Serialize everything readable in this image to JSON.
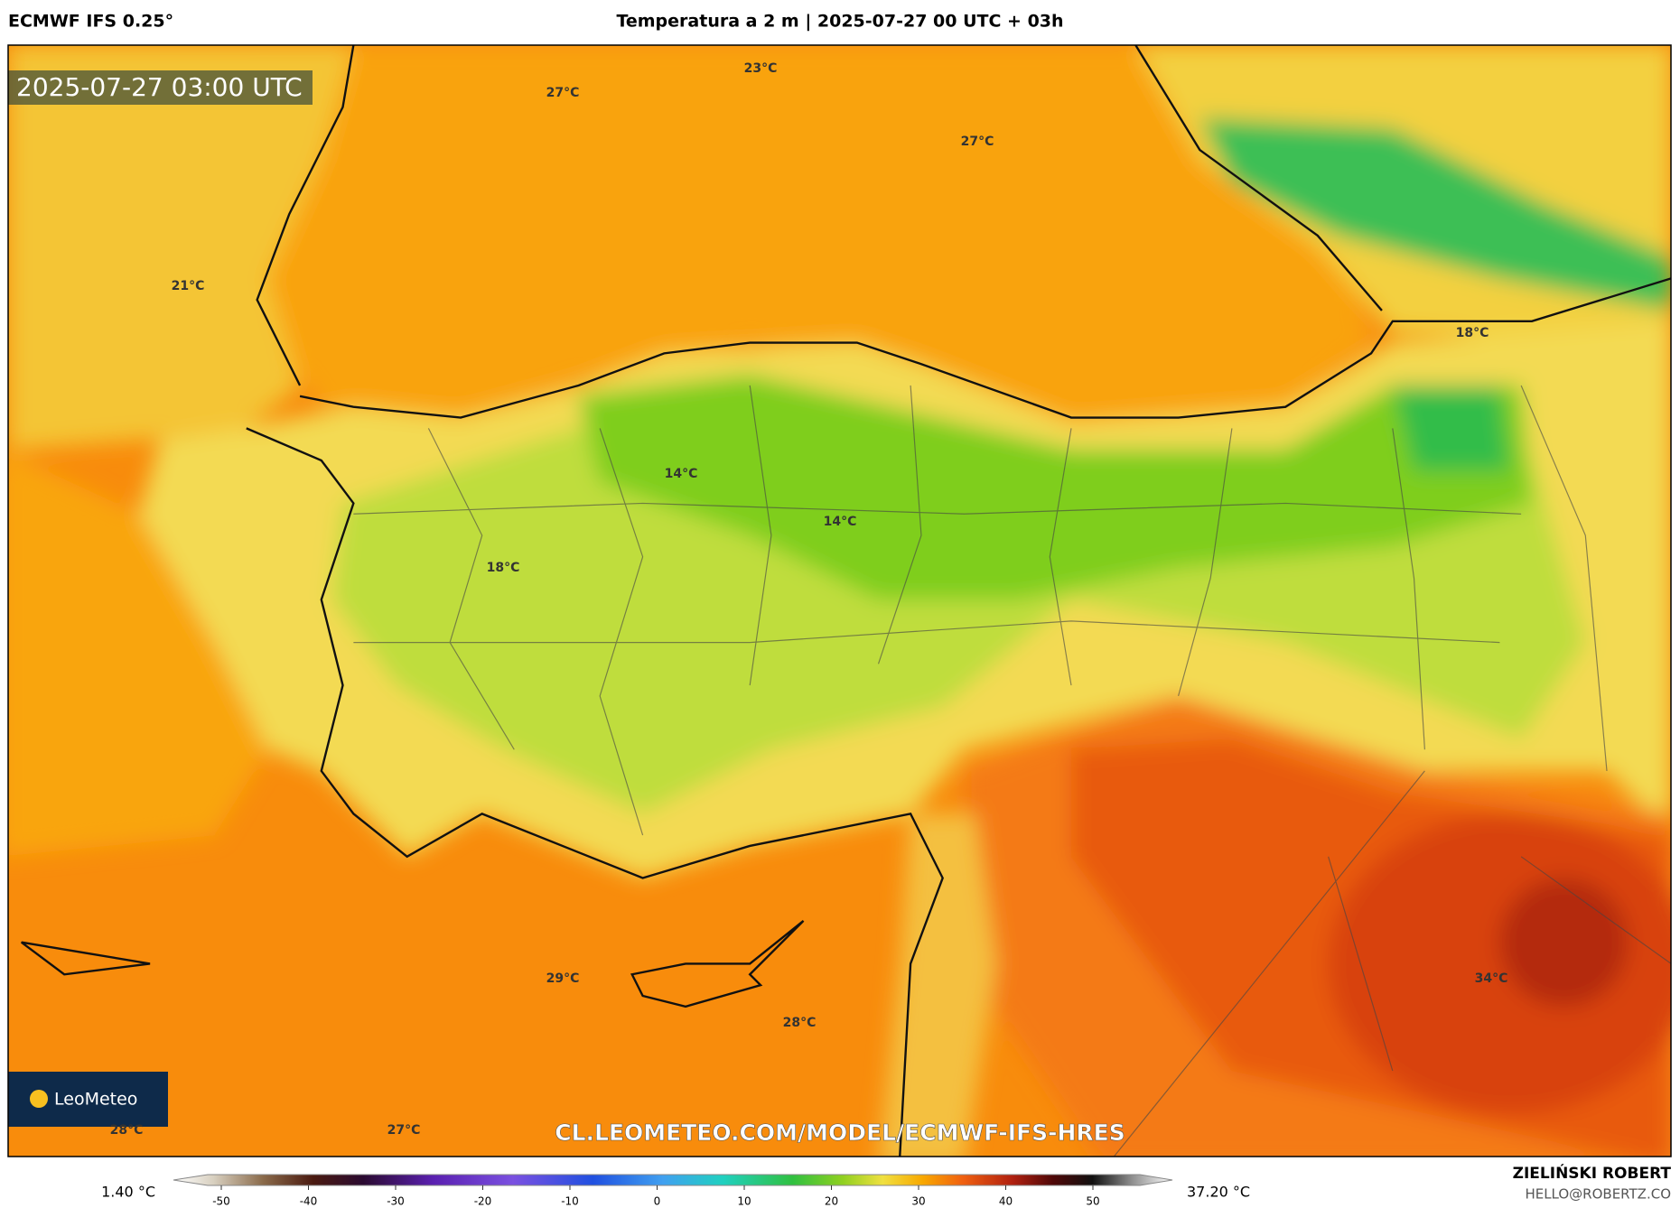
{
  "header": {
    "model": "ECMWF IFS 0.25°",
    "title": "Temperatura a 2 m | 2025-07-27 00 UTC + 03h"
  },
  "map": {
    "timestamp": "2025-07-27 03:00 UTC",
    "labels": [
      "23°C",
      "27°C",
      "27°C",
      "21°C",
      "18°C",
      "14°C",
      "14°C",
      "18°C",
      "29°C",
      "28°C",
      "34°C",
      "28°C",
      "27°C"
    ],
    "watermark": "CL.LEOMETEO.COM/MODEL/ECMWF-IFS-HRES",
    "logo": "LeoMeteo"
  },
  "colorbar": {
    "min_label": "1.40 °C",
    "max_label": "37.20 °C",
    "ticks": [
      -50,
      -40,
      -30,
      -20,
      -10,
      0,
      10,
      20,
      30,
      40,
      50
    ]
  },
  "footer": {
    "author": "ZIELIŃSKI ROBERT",
    "email": "HELLO@ROBERTZ.CO"
  }
}
